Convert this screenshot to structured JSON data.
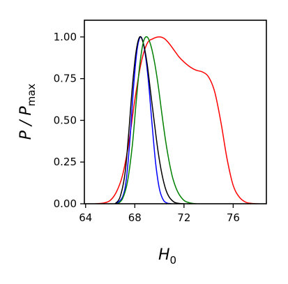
{
  "chart_data": {
    "type": "line",
    "xlabel": "H",
    "xlabel_sub": "0",
    "ylabel_main": "P / P",
    "ylabel_sub": "max",
    "xlim": [
      63.9,
      78.7
    ],
    "ylim": [
      0.0,
      1.1
    ],
    "xticks": [
      64,
      68,
      72,
      76
    ],
    "xtick_labels": [
      "64",
      "68",
      "72",
      "76"
    ],
    "yticks": [
      0.0,
      0.25,
      0.5,
      0.75,
      1.0
    ],
    "ytick_labels": [
      "0.00",
      "0.25",
      "0.50",
      "0.75",
      "1.00"
    ],
    "grid": false,
    "legend": "none",
    "series": [
      {
        "color": "#ff0000",
        "x": [
          64.8,
          65.5,
          66.0,
          66.5,
          67.0,
          67.5,
          68.0,
          68.5,
          69.0,
          69.5,
          70.0,
          70.4,
          70.8,
          71.2,
          71.6,
          72.0,
          72.5,
          73.0,
          73.5,
          74.0,
          74.5,
          75.0,
          75.5,
          76.0,
          76.5,
          77.0,
          77.5,
          78.0
        ],
        "y": [
          0.0,
          0.005,
          0.02,
          0.07,
          0.17,
          0.36,
          0.62,
          0.84,
          0.96,
          0.99,
          1.0,
          0.99,
          0.96,
          0.92,
          0.88,
          0.85,
          0.82,
          0.8,
          0.79,
          0.76,
          0.67,
          0.49,
          0.27,
          0.11,
          0.04,
          0.01,
          0.002,
          0.0
        ]
      },
      {
        "color": "#0000ff",
        "x": [
          66.5,
          67.0,
          67.3,
          67.6,
          67.9,
          68.2,
          68.5,
          68.8,
          69.1,
          69.4,
          69.7,
          70.0,
          70.3,
          70.6,
          71.0
        ],
        "y": [
          0.0,
          0.04,
          0.14,
          0.38,
          0.7,
          0.93,
          1.0,
          0.92,
          0.74,
          0.48,
          0.24,
          0.09,
          0.025,
          0.005,
          0.0
        ]
      },
      {
        "color": "#000000",
        "x": [
          66.4,
          66.8,
          67.2,
          67.5,
          67.8,
          68.1,
          68.4,
          68.7,
          69.0,
          69.3,
          69.6,
          69.9,
          70.2,
          70.5,
          70.8,
          71.2,
          71.6,
          72.0
        ],
        "y": [
          0.0,
          0.04,
          0.18,
          0.42,
          0.7,
          0.91,
          1.0,
          0.96,
          0.84,
          0.66,
          0.48,
          0.31,
          0.18,
          0.09,
          0.04,
          0.01,
          0.002,
          0.0
        ]
      },
      {
        "color": "#008000",
        "x": [
          66.6,
          67.0,
          67.4,
          67.8,
          68.1,
          68.4,
          68.7,
          69.0,
          69.3,
          69.6,
          69.9,
          70.2,
          70.5,
          70.8,
          71.1,
          71.5,
          72.0,
          72.5,
          73.0
        ],
        "y": [
          0.0,
          0.03,
          0.13,
          0.35,
          0.6,
          0.83,
          0.97,
          1.0,
          0.95,
          0.85,
          0.71,
          0.54,
          0.38,
          0.25,
          0.15,
          0.07,
          0.02,
          0.005,
          0.0
        ]
      }
    ]
  }
}
